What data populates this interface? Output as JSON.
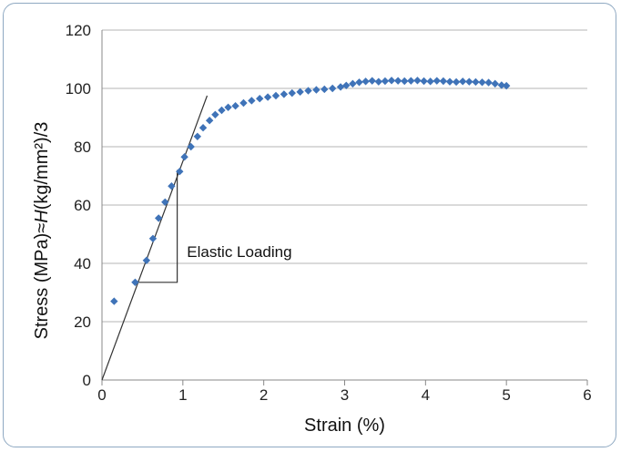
{
  "chart_data": {
    "type": "scatter",
    "title": "",
    "xlabel": "Strain (%)",
    "ylabel_parts": [
      "Stress (MPa)≈",
      "H",
      "(kg/mm²)/3"
    ],
    "xlim": [
      0,
      6
    ],
    "ylim": [
      0,
      120
    ],
    "x_ticks": [
      "0",
      "1",
      "2",
      "3",
      "4",
      "5",
      "6"
    ],
    "y_ticks": [
      "0",
      "20",
      "40",
      "60",
      "80",
      "100",
      "120"
    ],
    "grid": "horizontal",
    "marker_color": "#3f73b8",
    "series": [
      {
        "points": [
          [
            0.15,
            27
          ],
          [
            0.41,
            33.5
          ],
          [
            0.55,
            41
          ],
          [
            0.63,
            48.5
          ],
          [
            0.7,
            55.5
          ],
          [
            0.78,
            61
          ],
          [
            0.86,
            66.5
          ],
          [
            0.96,
            71.5
          ],
          [
            1.02,
            76.5
          ],
          [
            1.1,
            80
          ],
          [
            1.18,
            83.5
          ],
          [
            1.25,
            86.5
          ],
          [
            1.33,
            89
          ],
          [
            1.4,
            91
          ],
          [
            1.48,
            92.5
          ],
          [
            1.56,
            93.5
          ],
          [
            1.65,
            94
          ],
          [
            1.75,
            95
          ],
          [
            1.85,
            95.8
          ],
          [
            1.95,
            96.5
          ],
          [
            2.05,
            97
          ],
          [
            2.15,
            97.5
          ],
          [
            2.25,
            98
          ],
          [
            2.35,
            98.4
          ],
          [
            2.45,
            98.8
          ],
          [
            2.55,
            99.2
          ],
          [
            2.65,
            99.5
          ],
          [
            2.75,
            99.7
          ],
          [
            2.85,
            100
          ],
          [
            2.95,
            100.5
          ],
          [
            3.02,
            101
          ],
          [
            3.1,
            101.6
          ],
          [
            3.18,
            102.1
          ],
          [
            3.26,
            102.4
          ],
          [
            3.34,
            102.6
          ],
          [
            3.42,
            102.3
          ],
          [
            3.5,
            102.5
          ],
          [
            3.58,
            102.7
          ],
          [
            3.66,
            102.6
          ],
          [
            3.74,
            102.5
          ],
          [
            3.82,
            102.6
          ],
          [
            3.9,
            102.7
          ],
          [
            3.98,
            102.5
          ],
          [
            4.06,
            102.4
          ],
          [
            4.14,
            102.6
          ],
          [
            4.22,
            102.5
          ],
          [
            4.3,
            102.3
          ],
          [
            4.38,
            102.2
          ],
          [
            4.46,
            102.4
          ],
          [
            4.54,
            102.3
          ],
          [
            4.62,
            102.2
          ],
          [
            4.7,
            102.1
          ],
          [
            4.78,
            102.0
          ],
          [
            4.86,
            101.6
          ],
          [
            4.94,
            101.1
          ],
          [
            5.0,
            100.9
          ]
        ]
      }
    ],
    "elastic_line": {
      "from": [
        0,
        0
      ],
      "to": [
        1.3,
        97.5
      ]
    },
    "slope_triangle": {
      "x0": 0.41,
      "x1": 0.93,
      "y0": 33.5,
      "y1": 72
    },
    "annotation": {
      "text": "Elastic Loading",
      "x": 1.05,
      "y": 44
    }
  }
}
